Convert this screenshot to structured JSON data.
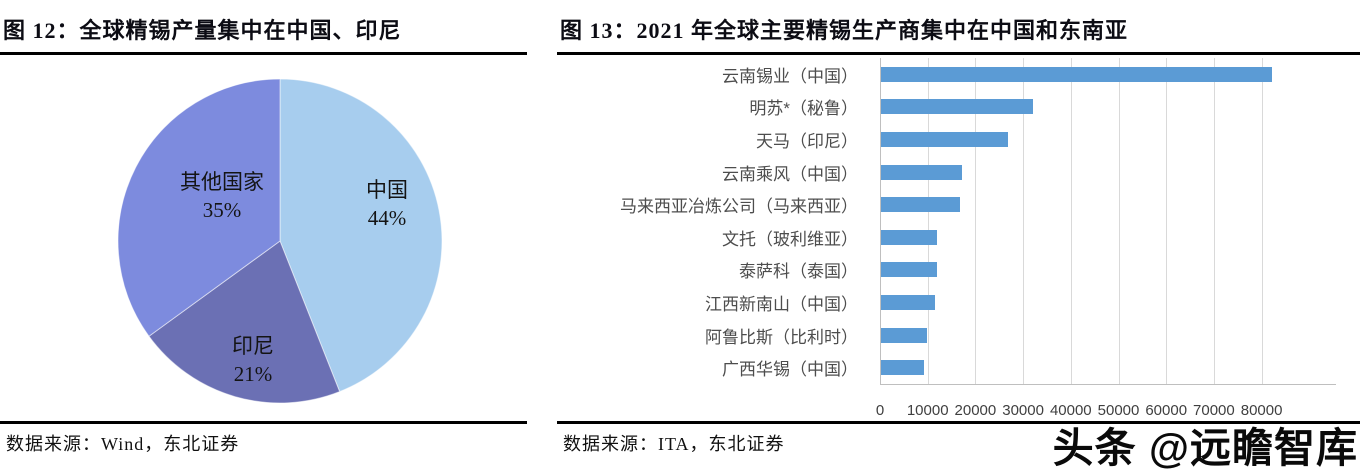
{
  "watermark": "头条 @远瞻智库",
  "left_panel": {
    "title": "图 12：全球精锡产量集中在中国、印尼",
    "source": "数据来源：Wind，东北证券"
  },
  "right_panel": {
    "title": "图 13：2021 年全球主要精锡生产商集中在中国和东南亚",
    "source": "数据来源：ITA，东北证券"
  },
  "chart_data": [
    {
      "type": "pie",
      "title": "图 12：全球精锡产量集中在中国、印尼",
      "labels": [
        "中国",
        "印尼",
        "其他国家"
      ],
      "values": [
        44,
        21,
        35
      ],
      "pct_display": [
        "44%",
        "21%",
        "35%"
      ],
      "colors": [
        "#A7CDEE",
        "#6B70B4",
        "#7D8BDE"
      ],
      "start_angle_deg": 0,
      "direction": "clockwise",
      "legend": "none",
      "source": "数据来源：Wind，东北证券"
    },
    {
      "type": "bar",
      "orientation": "horizontal",
      "title": "图 13：2021 年全球主要精锡生产商集中在中国和东南亚",
      "categories": [
        "云南锡业（中国）",
        "明苏*（秘鲁）",
        "天马（印尼）",
        "云南乘风（中国）",
        "马来西亚冶炼公司（马来西亚）",
        "文托（玻利维亚）",
        "泰萨科（泰国）",
        "江西新南山（中国）",
        "阿鲁比斯（比利时）",
        "广西华锡（中国）"
      ],
      "values": [
        82000,
        31900,
        26600,
        17000,
        16500,
        11800,
        11800,
        11400,
        9700,
        8900
      ],
      "x_ticks": [
        0,
        10000,
        20000,
        30000,
        40000,
        50000,
        60000,
        70000,
        80000
      ],
      "xlim": [
        0,
        95600
      ],
      "bar_color": "#5B9BD5",
      "grid": true,
      "legend": "none",
      "source": "数据来源：ITA，东北证券"
    }
  ]
}
